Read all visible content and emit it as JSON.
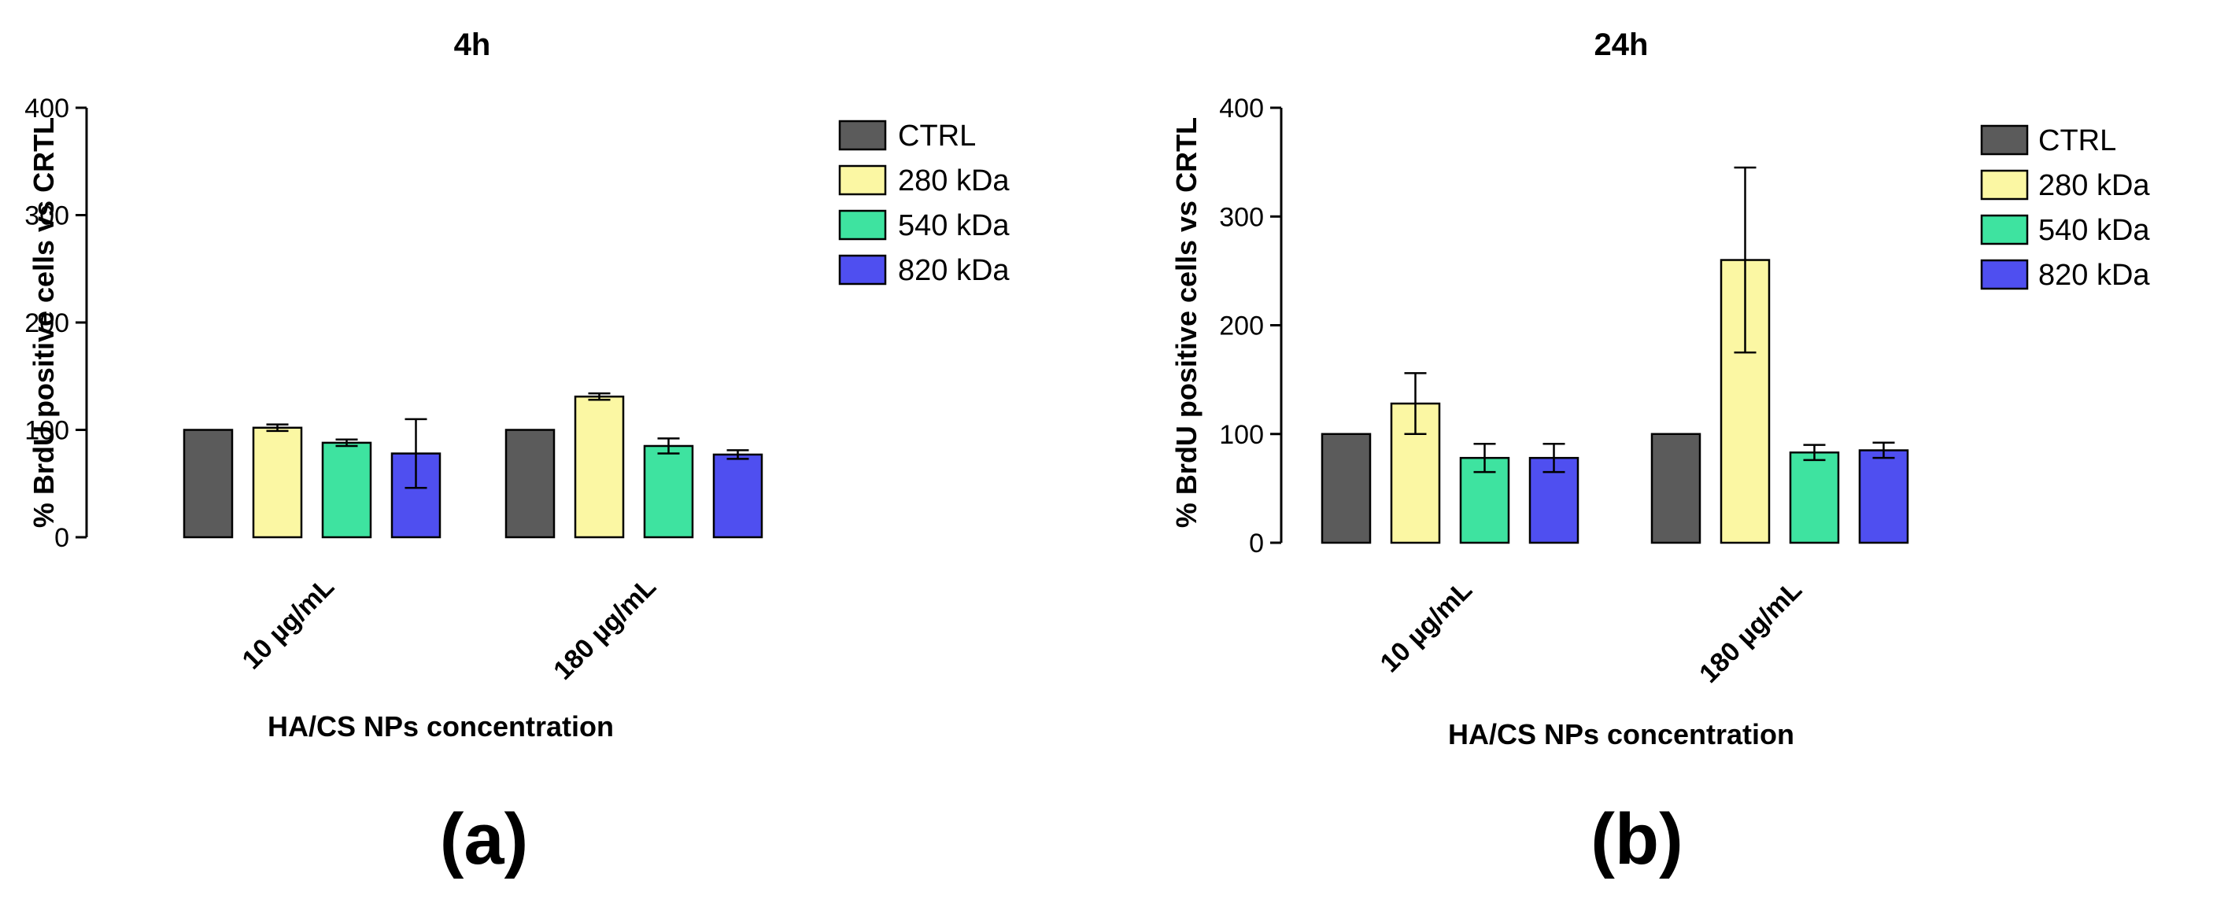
{
  "chart_data": [
    {
      "type": "bar",
      "panel_label": "(a)",
      "title": "4h",
      "xlabel": "HA/CS NPs concentration",
      "ylabel": "% BrdU positive cells vs CRTL",
      "ylim": [
        0,
        400
      ],
      "yticks": [
        "0",
        "100",
        "200",
        "300",
        "400"
      ],
      "categories": [
        "10 µg/mL",
        "180 µg/mL"
      ],
      "legend_position": "right",
      "series": [
        {
          "name": "CTRL",
          "color": "#5b5b5b",
          "values": [
            100,
            100
          ],
          "errors": [
            0,
            0
          ]
        },
        {
          "name": "280 kDa",
          "color": "#fbf7a3",
          "values": [
            102,
            131
          ],
          "errors": [
            3,
            3
          ]
        },
        {
          "name": "540 kDa",
          "color": "#3ee3a0",
          "values": [
            88,
            85
          ],
          "errors": [
            3,
            7
          ]
        },
        {
          "name": "820 kDa",
          "color": "#4f4ff0",
          "values": [
            78,
            77
          ],
          "errors": [
            32,
            4
          ]
        }
      ]
    },
    {
      "type": "bar",
      "panel_label": "(b)",
      "title": "24h",
      "xlabel": "HA/CS NPs concentration",
      "ylabel": "% BrdU positive cells vs CRTL",
      "ylim": [
        0,
        400
      ],
      "yticks": [
        "0",
        "100",
        "200",
        "300",
        "400"
      ],
      "categories": [
        "10 µg/mL",
        "180 µg/mL"
      ],
      "legend_position": "right",
      "series": [
        {
          "name": "CTRL",
          "color": "#5b5b5b",
          "values": [
            100,
            100
          ],
          "errors": [
            0,
            0
          ]
        },
        {
          "name": "280 kDa",
          "color": "#fbf7a3",
          "values": [
            128,
            260
          ],
          "errors": [
            28,
            85
          ]
        },
        {
          "name": "540 kDa",
          "color": "#3ee3a0",
          "values": [
            78,
            83
          ],
          "errors": [
            13,
            7
          ]
        },
        {
          "name": "820 kDa",
          "color": "#4f4ff0",
          "values": [
            78,
            85
          ],
          "errors": [
            13,
            7
          ]
        }
      ]
    }
  ]
}
